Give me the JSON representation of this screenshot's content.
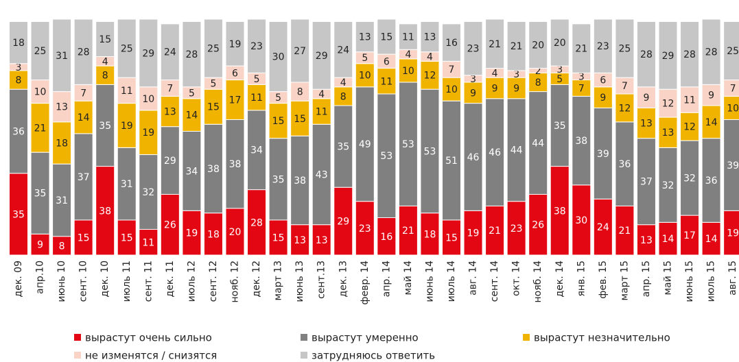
{
  "chart_data": {
    "type": "stacked_bar",
    "categories": [
      "дек. 09",
      "апр.10",
      "июнь 10",
      "сент. 10",
      "дек. 10",
      "июль 11",
      "сент. 11",
      "дек. 11",
      "июль 12",
      "сент. 12",
      "нояб. 12",
      "дек. 12",
      "март 13",
      "июнь 13",
      "сент.13",
      "дек. 13",
      "февр. 14",
      "апр. 14",
      "май 14",
      "июнь 14",
      "июль 14",
      "авг. 14",
      "сент. 14",
      "окт. 14",
      "нояб. 14",
      "дек. 14",
      "янв. 15",
      "фев. 15",
      "март 15",
      "апр. 15",
      "май 15",
      "июнь 15",
      "июль 15",
      "авг. 15"
    ],
    "series": [
      {
        "name": "вырастут очень сильно",
        "color": "#e30613",
        "values": [
          35,
          9,
          8,
          15,
          38,
          15,
          11,
          26,
          19,
          18,
          20,
          28,
          15,
          13,
          13,
          29,
          23,
          16,
          21,
          18,
          15,
          19,
          21,
          23,
          26,
          38,
          30,
          24,
          21,
          13,
          14,
          17,
          14,
          19
        ]
      },
      {
        "name": "вырастут умеренно",
        "color": "#808080",
        "values": [
          36,
          35,
          31,
          37,
          35,
          31,
          32,
          29,
          34,
          38,
          38,
          34,
          35,
          38,
          43,
          35,
          49,
          53,
          53,
          53,
          51,
          46,
          46,
          44,
          44,
          35,
          38,
          39,
          36,
          37,
          32,
          32,
          36,
          39
        ]
      },
      {
        "name": "вырастут незначительно",
        "color": "#f0b400",
        "values": [
          8,
          21,
          18,
          14,
          8,
          19,
          19,
          13,
          14,
          15,
          17,
          11,
          15,
          15,
          11,
          8,
          10,
          11,
          10,
          12,
          10,
          9,
          9,
          9,
          8,
          5,
          7,
          9,
          12,
          13,
          13,
          12,
          14,
          10
        ]
      },
      {
        "name": "не изменятся / снизятся",
        "color": "#f8d3c6",
        "values": [
          3,
          10,
          13,
          7,
          4,
          11,
          10,
          7,
          5,
          5,
          6,
          5,
          5,
          8,
          4,
          4,
          5,
          6,
          4,
          4,
          7,
          3,
          4,
          3,
          2,
          3,
          3,
          6,
          7,
          9,
          12,
          11,
          9,
          7
        ]
      },
      {
        "name": "затрудняюсь ответить",
        "color": "#c6c6c6",
        "values": [
          18,
          25,
          31,
          28,
          15,
          25,
          29,
          24,
          28,
          25,
          19,
          23,
          30,
          27,
          29,
          24,
          13,
          15,
          11,
          13,
          16,
          23,
          21,
          21,
          20,
          20,
          21,
          23,
          25,
          28,
          29,
          28,
          28,
          25
        ]
      }
    ]
  }
}
